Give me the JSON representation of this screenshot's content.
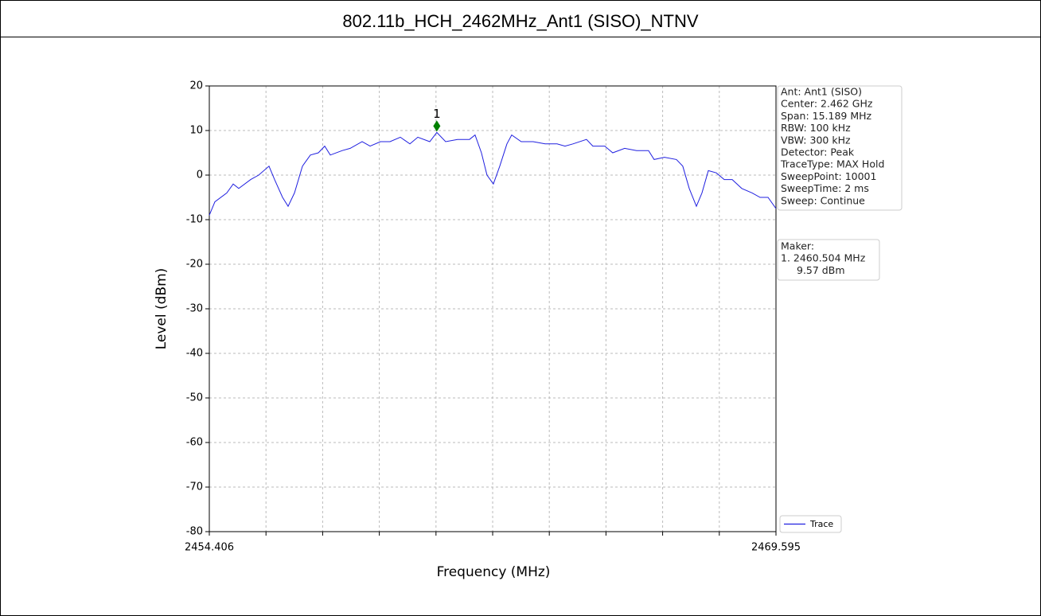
{
  "chart_data": {
    "type": "line",
    "title": "802.11b_HCH_2462MHz_Ant1 (SISO)_NTNV",
    "x_label": "Frequency (MHz)",
    "y_label": "Level (dBm)",
    "xlim": [
      2454.406,
      2469.595
    ],
    "ylim": [
      -80,
      20
    ],
    "xticks": [
      2454.406,
      2469.595
    ],
    "xminor_ticks": [
      2455.925,
      2457.444,
      2458.963,
      2460.482,
      2462.001,
      2463.519,
      2465.038,
      2466.557,
      2468.076
    ],
    "yticks": [
      -80,
      -70,
      -60,
      -50,
      -40,
      -30,
      -20,
      -10,
      0,
      10,
      20
    ],
    "grid": true,
    "legend": "lower right",
    "x": [
      2454.406,
      2454.555,
      2454.875,
      2455.046,
      2455.195,
      2455.515,
      2455.729,
      2456.006,
      2456.155,
      2456.369,
      2456.518,
      2456.689,
      2456.902,
      2457.115,
      2457.329,
      2457.499,
      2457.649,
      2457.969,
      2458.182,
      2458.502,
      2458.715,
      2458.993,
      2459.249,
      2459.526,
      2459.782,
      2459.995,
      2460.315,
      2460.504,
      2460.74,
      2461.06,
      2461.38,
      2461.529,
      2461.7,
      2461.849,
      2462.02,
      2462.191,
      2462.383,
      2462.511,
      2462.767,
      2463.087,
      2463.407,
      2463.727,
      2463.94,
      2464.153,
      2464.516,
      2464.686,
      2465.006,
      2465.219,
      2465.539,
      2465.859,
      2466.179,
      2466.329,
      2466.606,
      2466.926,
      2467.097,
      2467.27,
      2467.462,
      2467.611,
      2467.782,
      2467.995,
      2468.209,
      2468.422,
      2468.678,
      2468.955,
      2469.169,
      2469.382,
      2469.595
    ],
    "series": [
      {
        "name": "Trace",
        "color": "#2020e0",
        "values": [
          -9,
          -6,
          -4,
          -2,
          -3,
          -1,
          0,
          2,
          -1,
          -5,
          -7,
          -4,
          2,
          4.5,
          5,
          6.5,
          4.5,
          5.5,
          6,
          7.5,
          6.5,
          7.5,
          7.5,
          8.5,
          7,
          8.5,
          7.5,
          9.57,
          7.5,
          8,
          8,
          9,
          5,
          0,
          -2,
          2,
          7,
          9,
          7.5,
          7.5,
          7,
          7,
          6.5,
          7,
          8,
          6.5,
          6.5,
          5,
          6,
          5.5,
          5.5,
          3.5,
          4,
          3.5,
          2,
          -3,
          -7,
          -4,
          1,
          0.5,
          -1,
          -1,
          -3,
          -4,
          -5,
          -5,
          -7.5
        ]
      }
    ],
    "marker": {
      "label": "1",
      "x": 2460.504,
      "y": 9.57,
      "color": "#008000"
    },
    "info_box": [
      "Ant: Ant1 (SISO)",
      "Center: 2.462 GHz",
      "Span: 15.189 MHz",
      "RBW: 100 kHz",
      "VBW: 300 kHz",
      "Detector: Peak",
      "TraceType: MAX Hold",
      "SweepPoint: 10001",
      "SweepTime: 2 ms",
      "Sweep: Continue"
    ],
    "marker_box": [
      "Maker:",
      "1. 2460.504 MHz",
      "9.57 dBm"
    ]
  }
}
